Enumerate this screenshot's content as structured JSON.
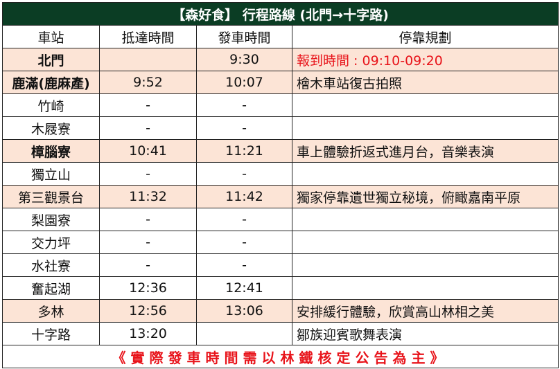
{
  "title": "【森好食】 行程路線 (北門→十字路)",
  "headers": [
    "車站",
    "抵達時間",
    "發車時間",
    "停靠規劃"
  ],
  "rows": [
    {
      "station": "北門",
      "arrive": "",
      "depart": "9:30",
      "note": "報到時間 : 09:10-09:20",
      "shaded": true,
      "bold": true,
      "note_red": true
    },
    {
      "station": "鹿滿(鹿麻產)",
      "arrive": "9:52",
      "depart": "10:07",
      "note": "檜木車站復古拍照",
      "shaded": true,
      "bold": true
    },
    {
      "station": "竹崎",
      "arrive": "-",
      "depart": "-",
      "note": ""
    },
    {
      "station": "木屐寮",
      "arrive": "-",
      "depart": "-",
      "note": ""
    },
    {
      "station": "樟腦寮",
      "arrive": "10:41",
      "depart": "11:21",
      "note": "車上體驗折返式進月台，音樂表演",
      "shaded": true,
      "bold": true
    },
    {
      "station": "獨立山",
      "arrive": "-",
      "depart": "-",
      "note": ""
    },
    {
      "station": "第三觀景台",
      "arrive": "11:32",
      "depart": "11:42",
      "note": "獨家停靠遺世獨立秘境，俯瞰嘉南平原",
      "shaded": true
    },
    {
      "station": "梨園寮",
      "arrive": "-",
      "depart": "-",
      "note": ""
    },
    {
      "station": "交力坪",
      "arrive": "-",
      "depart": "-",
      "note": ""
    },
    {
      "station": "水社寮",
      "arrive": "-",
      "depart": "-",
      "note": ""
    },
    {
      "station": "奮起湖",
      "arrive": "12:36",
      "depart": "12:41",
      "note": ""
    },
    {
      "station": "多林",
      "arrive": "12:56",
      "depart": "13:06",
      "note": "安排緩行體驗，欣賞高山林相之美",
      "shaded": true
    },
    {
      "station": "十字路",
      "arrive": "13:20",
      "depart": "",
      "note": "鄒族迎賓歌舞表演"
    }
  ],
  "footer": "《實際發車時間需以林鐵核定公告為主》",
  "colors": {
    "title_bg": "#0b3d24",
    "shade": "#fce4d6",
    "red": "#e8141b"
  }
}
